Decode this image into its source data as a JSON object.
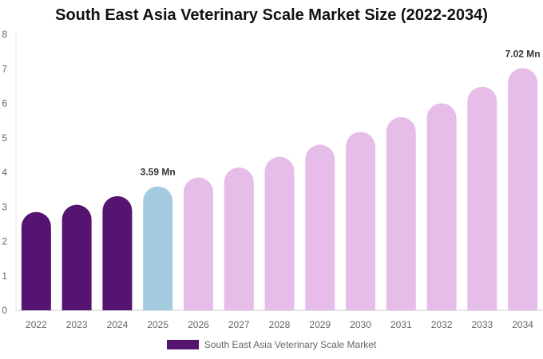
{
  "chart_data": {
    "type": "bar",
    "title": "South East Asia Veterinary Scale Market Size (2022-2034)",
    "categories": [
      "2022",
      "2023",
      "2024",
      "2025",
      "2026",
      "2027",
      "2028",
      "2029",
      "2030",
      "2031",
      "2032",
      "2033",
      "2034"
    ],
    "series": [
      {
        "name": "South East Asia Veterinary Scale Market",
        "values": [
          2.85,
          3.06,
          3.31,
          3.59,
          3.85,
          4.14,
          4.45,
          4.8,
          5.17,
          5.6,
          6.0,
          6.48,
          7.02
        ]
      }
    ],
    "bar_colors": [
      "#54146f",
      "#54146f",
      "#54146f",
      "#a4cadf",
      "#e6bde9",
      "#e6bde9",
      "#e6bde9",
      "#e6bde9",
      "#e6bde9",
      "#e6bde9",
      "#e6bde9",
      "#e6bde9",
      "#e6bde9"
    ],
    "data_labels": [
      {
        "category": "2025",
        "text": "3.59 Mn"
      },
      {
        "category": "2034",
        "text": "7.02 Mn"
      }
    ],
    "ylim": [
      0,
      8
    ],
    "yticks": [
      0,
      1,
      2,
      3,
      4,
      5,
      6,
      7,
      8
    ],
    "xlabel": "",
    "ylabel": "",
    "grid": false,
    "legend_position": "bottom",
    "legend_color": "#54146f"
  }
}
